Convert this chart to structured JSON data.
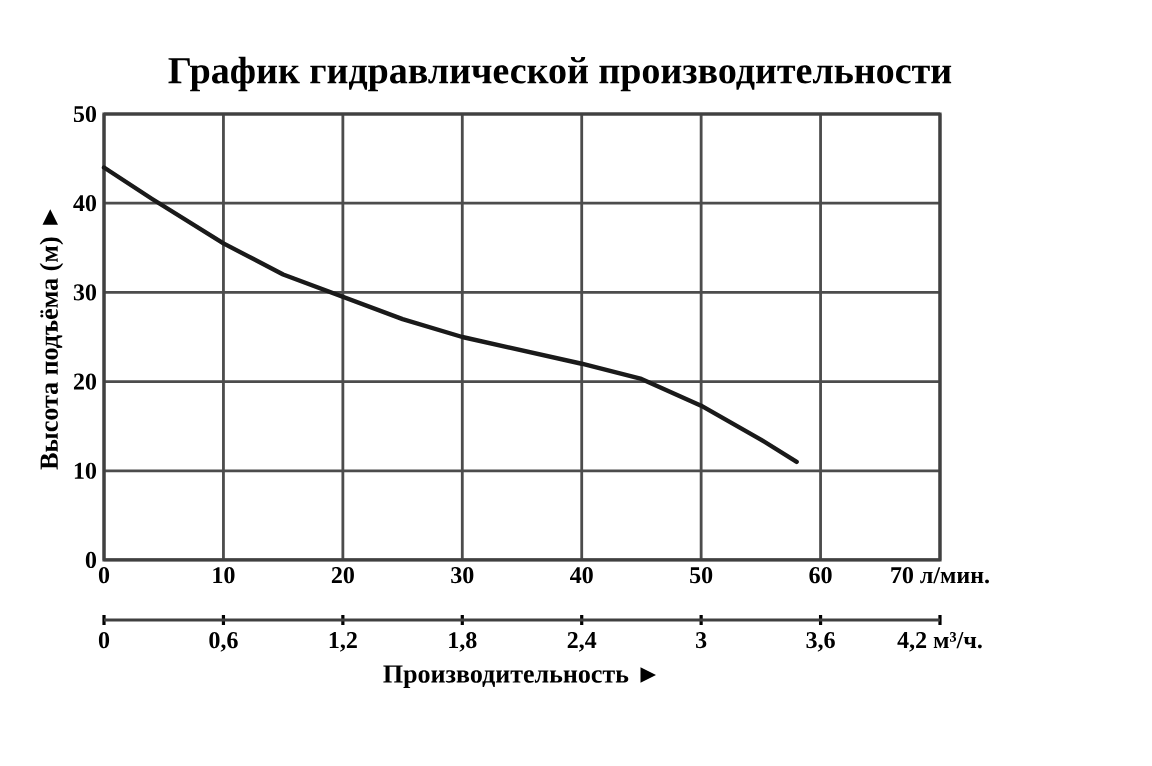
{
  "chart_data": {
    "type": "line",
    "title": "График гидравлической производительности",
    "xlabel": "Производительность ►",
    "ylabel": "Высота подъёма (м) ►",
    "x": [
      0,
      4,
      10,
      15,
      20,
      25,
      30,
      35,
      40,
      45,
      50,
      55,
      58
    ],
    "series": [
      {
        "color": "#1a1a1a",
        "values": [
          44,
          40.5,
          35.5,
          32,
          29.5,
          27,
          25,
          23.5,
          22,
          20.3,
          17.3,
          13.5,
          11
        ]
      }
    ],
    "xlim": [
      0,
      70
    ],
    "ylim": [
      0,
      50
    ],
    "xticks": [
      0,
      10,
      20,
      30,
      40,
      50,
      60,
      {
        "value": 70,
        "label": "70 л/мин."
      }
    ],
    "yticks": [
      0,
      10,
      20,
      30,
      40,
      50
    ],
    "x2lim": [
      0,
      4.2
    ],
    "x2ticks": [
      0,
      {
        "value": 0.6,
        "label": "0,6"
      },
      {
        "value": 1.2,
        "label": "1,2"
      },
      {
        "value": 1.8,
        "label": "1,8"
      },
      {
        "value": 2.4,
        "label": "2,4"
      },
      3,
      {
        "value": 3.6,
        "label": "3,6"
      },
      {
        "value": 4.2,
        "label": "4,2 м³/ч."
      }
    ],
    "grid": true,
    "marker": "none",
    "line_style": "solid"
  }
}
